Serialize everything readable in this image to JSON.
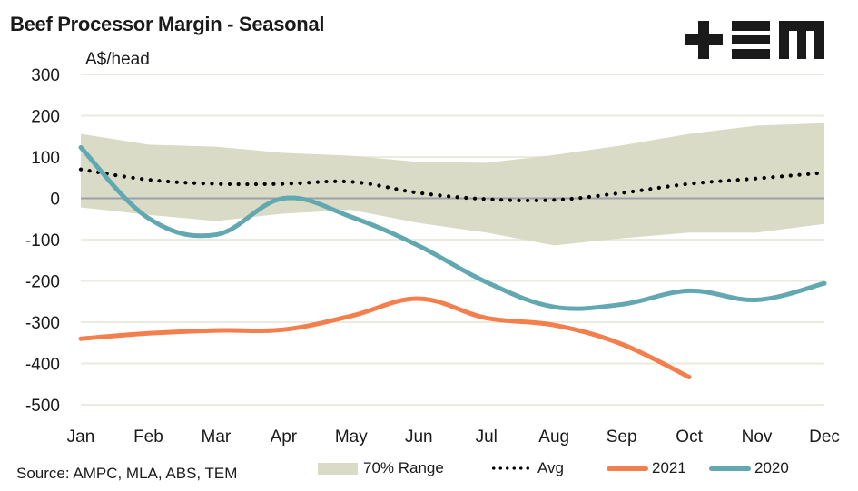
{
  "header": {
    "title": "Beef Processor Margin - Seasonal",
    "logo_text": "TEM",
    "unit_label": "A$/head"
  },
  "footer": {
    "source": "Source: AMPC, MLA, ABS, TEM"
  },
  "chart_data": {
    "type": "line",
    "title": "Beef Processor Margin - Seasonal",
    "xlabel": "",
    "ylabel": "A$/head",
    "categories": [
      "Jan",
      "Feb",
      "Mar",
      "Apr",
      "May",
      "Jun",
      "Jul",
      "Aug",
      "Sep",
      "Oct",
      "Nov",
      "Dec"
    ],
    "ylim": [
      -500,
      300
    ],
    "yticks": [
      300,
      200,
      100,
      0,
      -100,
      -200,
      -300,
      -400,
      -500
    ],
    "ytick_labels": [
      "300",
      "200",
      "100",
      "0",
      "-100",
      "-200",
      "-300",
      "-400",
      "-500"
    ],
    "grid": true,
    "legend_position": "bottom",
    "range_band": {
      "name": "70% Range",
      "color": "#d9dbc6",
      "upper": [
        156,
        130,
        125,
        110,
        103,
        88,
        86,
        105,
        128,
        156,
        176,
        182
      ],
      "lower": [
        -22,
        -40,
        -55,
        -37,
        -28,
        -60,
        -83,
        -114,
        -97,
        -83,
        -83,
        -62
      ]
    },
    "series": [
      {
        "name": "Avg",
        "style": "dotted",
        "color": "#000000",
        "values": [
          70,
          45,
          35,
          35,
          40,
          13,
          -2,
          -4,
          13,
          35,
          48,
          62
        ]
      },
      {
        "name": "2021",
        "style": "solid",
        "color": "#f47f4d",
        "values": [
          -340,
          -327,
          -320,
          -318,
          -285,
          -243,
          -290,
          -307,
          -353,
          -433,
          null,
          null
        ]
      },
      {
        "name": "2020",
        "style": "solid",
        "color": "#62a8b1",
        "values": [
          123,
          -48,
          -88,
          0,
          -45,
          -115,
          -203,
          -263,
          -257,
          -224,
          -246,
          -206
        ]
      }
    ],
    "legend": [
      "70% Range",
      "Avg",
      "2021",
      "2020"
    ]
  }
}
